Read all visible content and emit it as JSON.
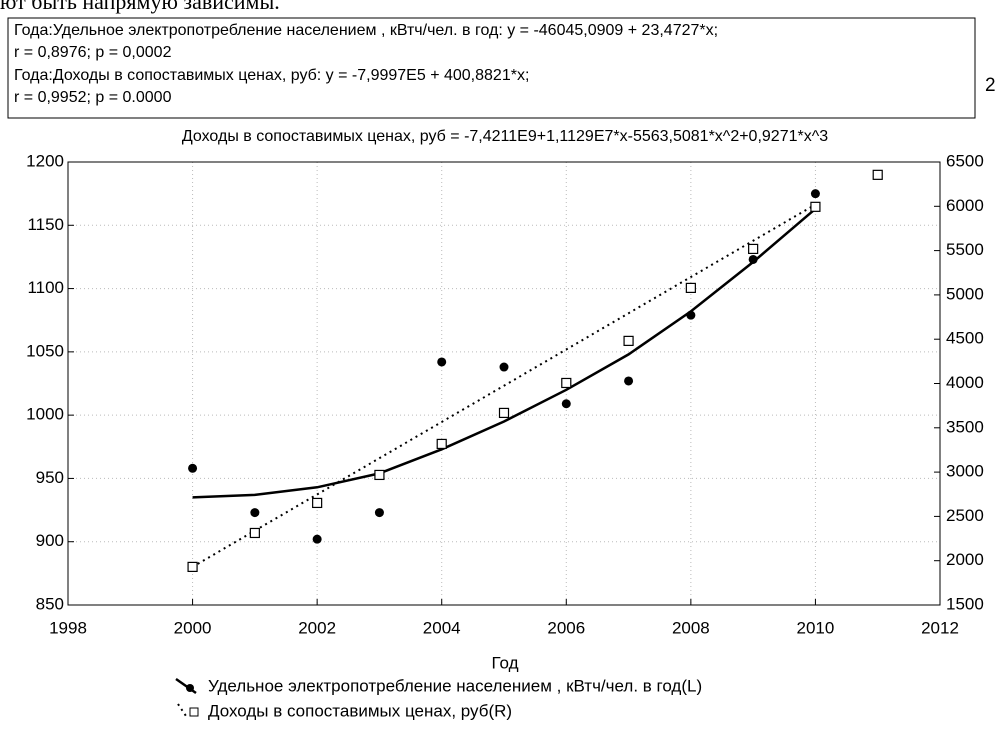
{
  "page_fragment": "ют быть напрямую зависимы.",
  "chart_data": {
    "type": "scatter",
    "equation_box": [
      "Года:Удельное электропотребление населением , кВтч/чел. в год:   y = -46045,0909 + 23,4727*x;",
      "r = 0,8976; p = 0,0002",
      "Года:Доходы в сопоставимых ценах, руб:   y = -7,9997E5 + 400,8821*x;",
      "r = 0,9952; p = 0.0000"
    ],
    "side_mark": "2",
    "title": "Доходы в сопоставимых ценах, руб = -7,4211E9+1,1129E7*x-5563,5081*x^2+0,9271*x^3",
    "xlabel": "Год",
    "xlim": [
      1998,
      2012
    ],
    "xticks": [
      1998,
      2000,
      2002,
      2004,
      2006,
      2008,
      2010,
      2012
    ],
    "ylim": [
      850,
      1200
    ],
    "yticks": [
      850,
      900,
      950,
      1000,
      1050,
      1100,
      1150,
      1200
    ],
    "y2lim": [
      1500,
      6500
    ],
    "y2ticks": [
      1500,
      2000,
      2500,
      3000,
      3500,
      4000,
      4500,
      5000,
      5500,
      6000,
      6500
    ],
    "grid": true,
    "series": [
      {
        "name": "Удельное электропотребление населением , кВтч/чел. в год(L)",
        "color": "#000000",
        "marker": "circle",
        "x": [
          2000,
          2001,
          2002,
          2003,
          2004,
          2005,
          2006,
          2007,
          2008,
          2009,
          2010
        ],
        "values": [
          958,
          923,
          902,
          923,
          1042,
          1038,
          1009,
          1027,
          1079,
          1123,
          1175
        ],
        "fit": {
          "style": "solid",
          "x": [
            2000,
            2001,
            2002,
            2003,
            2004,
            2005,
            2006,
            2007,
            2008,
            2009,
            2010
          ],
          "values": [
            935,
            937,
            943,
            954,
            973,
            995,
            1020,
            1048,
            1082,
            1121,
            1163
          ]
        }
      },
      {
        "name": "Доходы в сопоставимых ценах, руб(R)",
        "color": "#000000",
        "marker": "square",
        "axis": "y2",
        "x": [
          2000,
          2001,
          2002,
          2003,
          2004,
          2005,
          2006,
          2007,
          2008,
          2009,
          2010,
          2011
        ],
        "values": [
          1930,
          2313,
          2652,
          2968,
          3318,
          3668,
          4006,
          4481,
          5079,
          5519,
          5994,
          6355
        ],
        "fit": {
          "style": "dotted",
          "x": [
            2000,
            2010
          ],
          "values": [
            1930,
            6020
          ]
        }
      }
    ]
  }
}
